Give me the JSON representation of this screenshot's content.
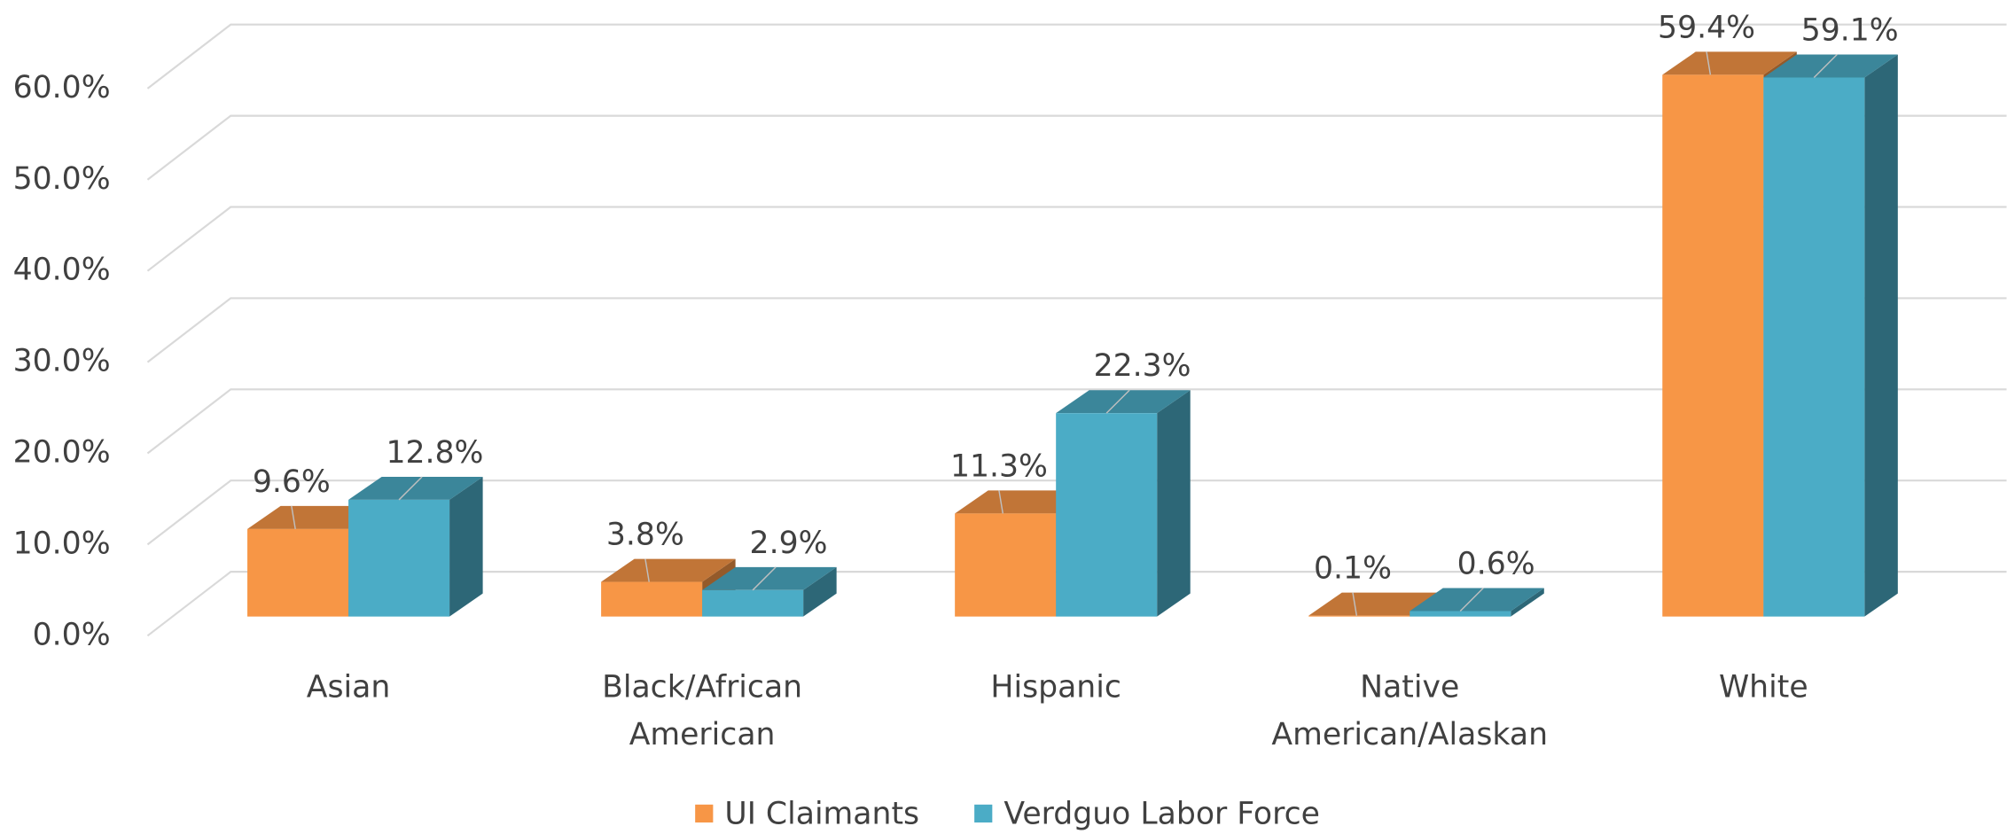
{
  "chart_data": {
    "type": "bar3d",
    "categories": [
      "Asian",
      "Black/African American",
      "Hispanic",
      "Native American/Alaskan",
      "White"
    ],
    "series": [
      {
        "name": "UI Claimants",
        "color": "#f79646",
        "values": [
          9.6,
          3.8,
          11.3,
          0.1,
          59.4
        ],
        "value_labels": [
          "9.6%",
          "3.8%",
          "11.3%",
          "0.1%",
          "59.4%"
        ]
      },
      {
        "name": "Verdguo Labor Force",
        "color": "#4bacc6",
        "values": [
          12.8,
          2.9,
          22.3,
          0.6,
          59.1
        ],
        "value_labels": [
          "12.8%",
          "2.9%",
          "22.3%",
          "0.6%",
          "59.1%"
        ]
      }
    ],
    "ylim": [
      0,
      60
    ],
    "yticks": [
      {
        "value": 0,
        "label": "0.0%"
      },
      {
        "value": 10,
        "label": "10.0%"
      },
      {
        "value": 20,
        "label": "20.0%"
      },
      {
        "value": 30,
        "label": "30.0%"
      },
      {
        "value": 40,
        "label": "40.0%"
      },
      {
        "value": 50,
        "label": "50.0%"
      },
      {
        "value": 60,
        "label": "60.0%"
      }
    ],
    "grid": true,
    "legend": "bottom"
  }
}
